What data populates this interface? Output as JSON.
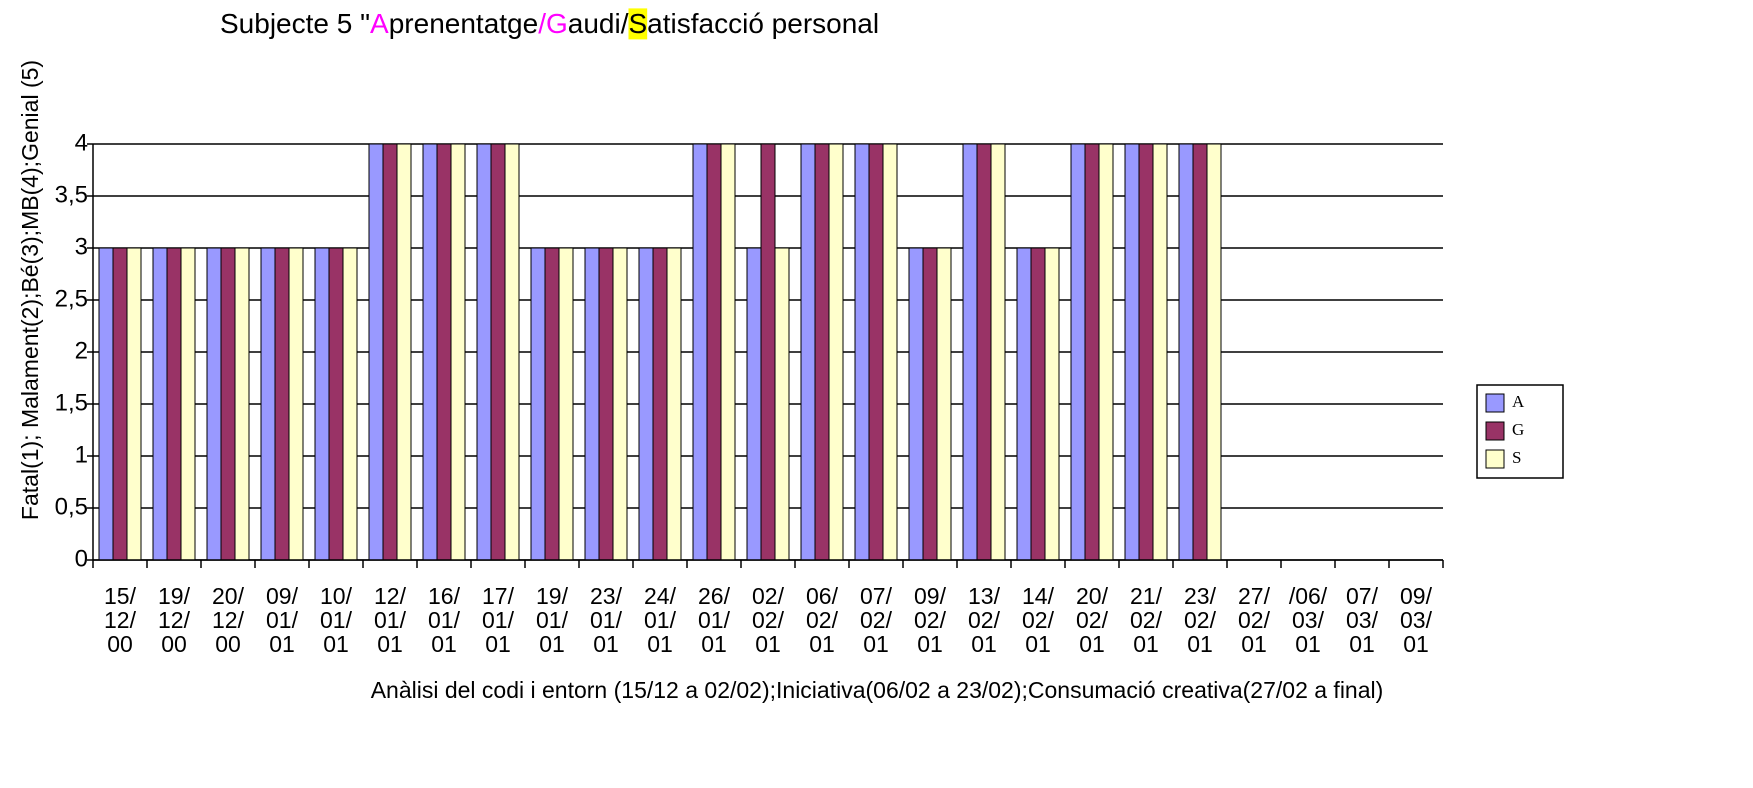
{
  "chart_data": {
    "type": "bar",
    "title": [
      "Subjecte 5  \"",
      "A",
      "prenentatge",
      "/G",
      "audi/",
      "S",
      "atisfacció personal"
    ],
    "title_colors": [
      "#000000",
      "#ff00ff",
      "#000000",
      "#ff00ff",
      "#000000",
      "#000000",
      "#000000"
    ],
    "title_highlight": [
      null,
      null,
      null,
      null,
      null,
      "#ffff00",
      null
    ],
    "x_label": "Anàlisi  del codi i entorn (15/12 a 02/02);Iniciativa(06/02 a 23/02);Consumació creativa(27/02  a final)",
    "y_label": "Fatal(1); Malament(2);Bé(3);MB(4);Genial (5)",
    "categories": [
      "15/12/00",
      "19/12/00",
      "20/12/00",
      "09/01/01",
      "10/01/01",
      "12/01/01",
      "16/01/01",
      "17/01/01",
      "19/01/01",
      "23/01/01",
      "24/01/01",
      "26/01/01",
      "02/02/01",
      "06/02/01",
      "07/02/01",
      "09/02/01",
      "13/02/01",
      "14/02/01",
      "20/02/01",
      "21/02/01",
      "23/02/01",
      "27/02/01",
      "/06/03/01",
      "07/03/01",
      "09/03/01"
    ],
    "series": [
      {
        "name": "A",
        "color": "#9999ff",
        "values": [
          3,
          3,
          3,
          3,
          3,
          4,
          4,
          4,
          3,
          3,
          3,
          4,
          3,
          4,
          4,
          3,
          4,
          3,
          4,
          4,
          4,
          null,
          null,
          null,
          null
        ]
      },
      {
        "name": "G",
        "color": "#993366",
        "values": [
          3,
          3,
          3,
          3,
          3,
          4,
          4,
          4,
          3,
          3,
          3,
          4,
          4,
          4,
          4,
          3,
          4,
          3,
          4,
          4,
          4,
          null,
          null,
          null,
          null
        ]
      },
      {
        "name": "S",
        "color": "#ffffcc",
        "values": [
          3,
          3,
          3,
          3,
          3,
          4,
          4,
          4,
          3,
          3,
          3,
          4,
          3,
          4,
          4,
          3,
          4,
          3,
          4,
          4,
          4,
          null,
          null,
          null,
          null
        ]
      }
    ],
    "ylim": [
      0,
      4
    ],
    "yticks": [
      0,
      {
        "value": 0.5,
        "label": "0,5"
      },
      1,
      {
        "value": 1.5,
        "label": "1,5"
      },
      2,
      {
        "value": 2.5,
        "label": "2,5"
      },
      3,
      {
        "value": 3.5,
        "label": "3,5"
      },
      4
    ],
    "grid": true,
    "legend": "right"
  }
}
